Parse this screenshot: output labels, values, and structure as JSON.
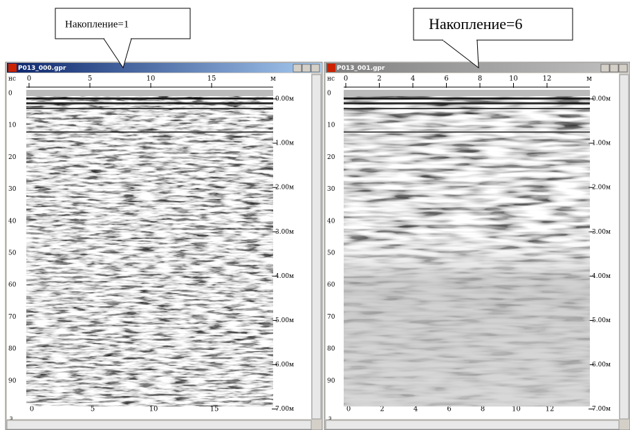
{
  "windows": [
    {
      "callout": "Накопление=1",
      "title": "P013_000.gpr",
      "time_unit": "нс",
      "distance_unit": "м",
      "top_ticks": [
        "0",
        "5",
        "10",
        "15"
      ],
      "bottom_ticks": [
        "0",
        "5",
        "10",
        "15"
      ],
      "time_ticks": [
        "0",
        "10",
        "20",
        "30",
        "40",
        "50",
        "60",
        "70",
        "80",
        "90"
      ],
      "depth_ticks": [
        "0.00м",
        "1.00м",
        "2.00м",
        "3.00м",
        "4.00м",
        "5.00м",
        "6.00м",
        "7.00м"
      ],
      "corner_label": "з"
    },
    {
      "callout": "Накопление=6",
      "title": "P013_001.gpr",
      "time_unit": "нс",
      "distance_unit": "м",
      "top_ticks": [
        "0",
        "2",
        "4",
        "6",
        "8",
        "10",
        "12"
      ],
      "bottom_ticks": [
        "0",
        "2",
        "4",
        "6",
        "8",
        "10",
        "12"
      ],
      "time_ticks": [
        "0",
        "10",
        "20",
        "30",
        "40",
        "50",
        "60",
        "70",
        "80",
        "90"
      ],
      "depth_ticks": [
        "0.00м",
        "1.00м",
        "2.00м",
        "3.00м",
        "4.00м",
        "5.00м",
        "6.00м",
        "7.00м"
      ],
      "corner_label": "з"
    }
  ]
}
